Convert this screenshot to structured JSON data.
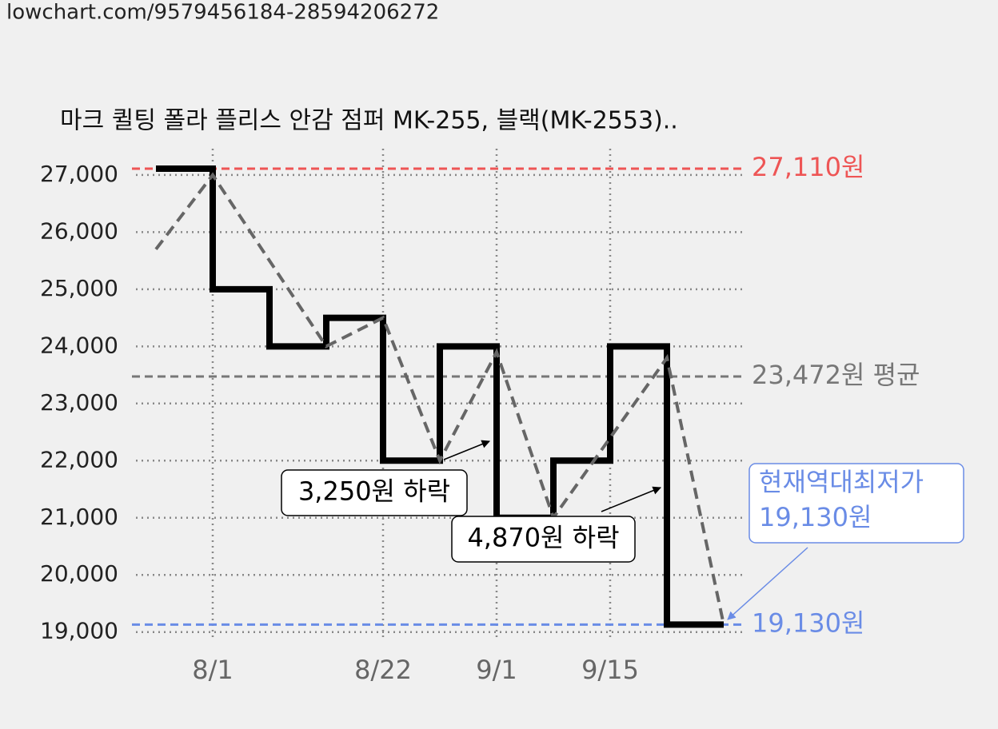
{
  "header": {
    "url": "lowchart.com/9579456184-28594206272"
  },
  "chart_data": {
    "type": "step",
    "title": "마크 퀼팅 폴라 플리스 안감 점퍼 MK-255, 블랙(MK-2553)..",
    "categories": [
      null,
      "8/1",
      null,
      null,
      "8/22",
      null,
      "9/1",
      null,
      "9/15",
      null,
      null
    ],
    "series": [
      {
        "color": "#000000",
        "values": [
          27110,
          25000,
          24000,
          24500,
          22000,
          24000,
          21000,
          22000,
          24000,
          19130,
          19130
        ]
      },
      {
        "color": "#666666",
        "values": [
          25700,
          27000,
          25500,
          24000,
          24500,
          22000,
          23900,
          21000,
          22400,
          23800,
          19130
        ]
      }
    ],
    "ylim": [
      18870,
      27390
    ],
    "yticks": [
      {
        "value": 19000,
        "label": "19,000"
      },
      {
        "value": 20000,
        "label": "20,000"
      },
      {
        "value": 21000,
        "label": "21,000"
      },
      {
        "value": 22000,
        "label": "22,000"
      },
      {
        "value": 23000,
        "label": "23,000"
      },
      {
        "value": 24000,
        "label": "24,000"
      },
      {
        "value": 25000,
        "label": "25,000"
      },
      {
        "value": 26000,
        "label": "26,000"
      },
      {
        "value": 27000,
        "label": "27,000"
      }
    ],
    "grid": true,
    "reference_lines": [
      {
        "value": 27110,
        "label": "27,110원",
        "color": "#ee5555"
      },
      {
        "value": 23472,
        "label": "23,472원 평균",
        "color": "#777777"
      },
      {
        "value": 19130,
        "label": "19,130원",
        "color": "#6a8ce6"
      }
    ],
    "annotations": [
      {
        "text": "3,250원 하락"
      },
      {
        "text": "4,870원 하락"
      },
      {
        "lines": [
          "현재역대최저가",
          "19,130원"
        ]
      }
    ]
  }
}
